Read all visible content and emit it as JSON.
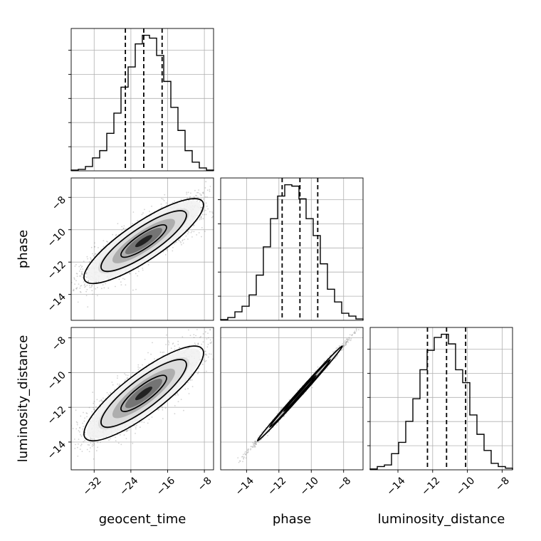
{
  "chart_data": {
    "type": "corner",
    "parameters": [
      "geocent_time",
      "phase",
      "luminosity_distance"
    ],
    "axis_labels": {
      "x": [
        "geocent_time",
        "phase",
        "luminosity_distance"
      ],
      "y": [
        "phase",
        "luminosity_distance"
      ]
    },
    "ranges": {
      "geocent_time": [
        -37,
        -6
      ],
      "phase": [
        -15.6,
        -6.8
      ],
      "luminosity_distance": [
        -15.6,
        -7.4
      ]
    },
    "ticks": {
      "geocent_time": {
        "values": [
          -32,
          -24,
          -16,
          -8
        ],
        "labels": [
          "−32",
          "−24",
          "−16",
          "−8"
        ]
      },
      "phase": {
        "values": [
          -14,
          -12,
          -10,
          -8
        ],
        "labels": [
          "−14",
          "−12",
          "−10",
          "−8"
        ]
      },
      "luminosity_distance": {
        "values": [
          -14,
          -12,
          -10,
          -8
        ],
        "labels": [
          "−14",
          "−12",
          "−10",
          "−8"
        ]
      }
    },
    "quantiles": {
      "geocent_time": [
        -25.2,
        -21.2,
        -17.2
      ],
      "phase": [
        -11.8,
        -10.7,
        -9.6
      ],
      "luminosity_distance": [
        -12.3,
        -11.2,
        -10.1
      ]
    },
    "histograms": {
      "geocent_time": {
        "edges": [
          -37,
          -35.45,
          -33.9,
          -32.35,
          -30.8,
          -29.25,
          -27.7,
          -26.15,
          -24.6,
          -23.05,
          -21.5,
          -19.95,
          -18.4,
          -16.85,
          -15.3,
          -13.75,
          -12.2,
          -10.65,
          -9.1,
          -7.55,
          -6
        ],
        "counts": [
          0.5,
          1,
          3,
          9,
          14,
          26,
          40,
          58,
          72,
          88,
          94,
          92,
          80,
          62,
          44,
          28,
          14,
          6,
          2,
          0.5
        ]
      },
      "phase": {
        "edges": [
          -15.6,
          -15.16,
          -14.72,
          -14.28,
          -13.84,
          -13.4,
          -12.96,
          -12.52,
          -12.08,
          -11.64,
          -11.2,
          -10.76,
          -10.32,
          -9.88,
          -9.44,
          -9,
          -8.56,
          -8.12,
          -7.68,
          -7.24,
          -6.8
        ],
        "counts": [
          0.5,
          2,
          6,
          10,
          18,
          32,
          52,
          72,
          88,
          96,
          95,
          86,
          72,
          60,
          40,
          22,
          13,
          5,
          3,
          1
        ]
      },
      "luminosity_distance": {
        "edges": [
          -15.6,
          -15.19,
          -14.78,
          -14.37,
          -13.96,
          -13.55,
          -13.14,
          -12.73,
          -12.32,
          -11.91,
          -11.5,
          -11.09,
          -10.68,
          -10.27,
          -9.86,
          -9.45,
          -9.04,
          -8.63,
          -8.22,
          -7.81,
          -7.4
        ],
        "counts": [
          0.5,
          2,
          3,
          10,
          17,
          30,
          44,
          62,
          74,
          82,
          84,
          78,
          62,
          54,
          34,
          22,
          12,
          4,
          2,
          1
        ]
      }
    },
    "pairs": [
      {
        "x": "geocent_time",
        "y": "phase",
        "mean": [
          -21.2,
          -10.7
        ],
        "sd": [
          6.2,
          1.25
        ],
        "rho": 0.85,
        "points": 2600
      },
      {
        "x": "geocent_time",
        "y": "luminosity_distance",
        "mean": [
          -21.2,
          -11.2
        ],
        "sd": [
          6.2,
          1.3
        ],
        "rho": 0.85,
        "points": 2600
      },
      {
        "x": "phase",
        "y": "luminosity_distance",
        "mean": [
          -10.7,
          -11.2
        ],
        "sd": [
          1.25,
          1.3
        ],
        "rho": 0.997,
        "points": 2600
      }
    ],
    "grid": true,
    "colors": {
      "line": "#000000",
      "grid": "#b0b0b0",
      "points": "#7f7f7f"
    }
  }
}
